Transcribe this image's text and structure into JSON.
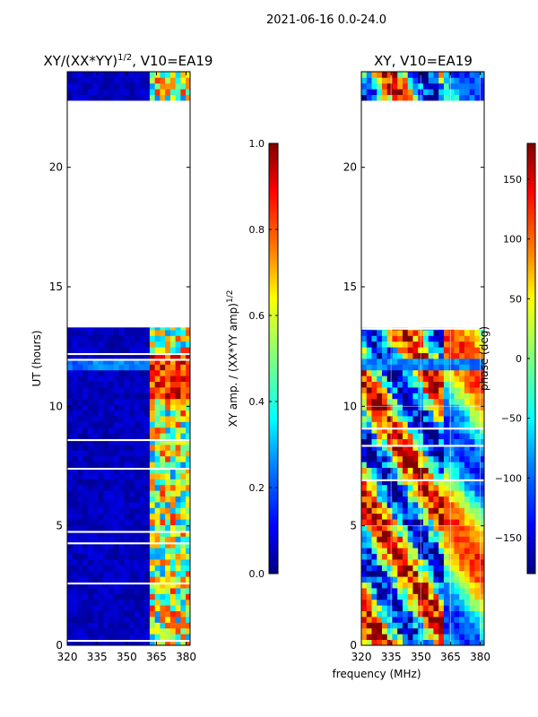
{
  "figure": {
    "suptitle": "2021-06-16 0.0-24.0",
    "shared_xlabel": "frequency (MHz)"
  },
  "colormap": {
    "name": "jet",
    "stops": [
      "#000080",
      "#0000ff",
      "#0080ff",
      "#00ffff",
      "#80ff80",
      "#ffff00",
      "#ff8000",
      "#ff0000",
      "#800000"
    ]
  },
  "chart_data": [
    {
      "type": "heatmap",
      "title": "XY/(XX*YY)^1/2, V10=EA19",
      "title_main": "XY/(XX*YY)",
      "title_sup": "1/2",
      "title_tail": ", V10=EA19",
      "xlabel": "",
      "ylabel": "UT (hours)",
      "xlim": [
        320,
        382
      ],
      "ylim": [
        0,
        24
      ],
      "xticks": [
        320,
        335,
        350,
        365,
        380
      ],
      "xtick_labels": [
        "320",
        "335",
        "350",
        "365",
        "380"
      ],
      "yticks": [
        0,
        5,
        10,
        15,
        20
      ],
      "ytick_labels": [
        "0",
        "5",
        "10",
        "15",
        "20"
      ],
      "data_coverage_ut": [
        [
          0,
          13.3
        ],
        [
          22.8,
          24
        ]
      ],
      "colorbar": {
        "label": "XY amp. / (XX*YY amp)^1/2",
        "label_main": "XY amp. / (XX*YY amp)",
        "label_sup": "1/2",
        "range": [
          0,
          1
        ],
        "ticks": [
          0.0,
          0.2,
          0.4,
          0.6,
          0.8,
          1.0
        ],
        "tick_labels": [
          "0.0",
          "0.2",
          "0.4",
          "0.6",
          "0.8",
          "1.0"
        ]
      }
    },
    {
      "type": "heatmap",
      "title": "XY, V10=EA19",
      "xlabel": "frequency (MHz)",
      "ylabel": "",
      "xlim": [
        320,
        382
      ],
      "ylim": [
        0,
        24
      ],
      "xticks": [
        320,
        335,
        350,
        365,
        380
      ],
      "xtick_labels": [
        "320",
        "335",
        "350",
        "365",
        "380"
      ],
      "yticks": [
        0,
        5,
        10,
        15,
        20
      ],
      "ytick_labels": [
        "0",
        "5",
        "10",
        "15",
        "20"
      ],
      "data_coverage_ut": [
        [
          0,
          13.3
        ],
        [
          22.8,
          24
        ]
      ],
      "colorbar": {
        "label": "phase (deg)",
        "range": [
          -180,
          180
        ],
        "ticks": [
          -150,
          -100,
          -50,
          0,
          50,
          100,
          150
        ],
        "tick_labels": [
          "−150",
          "−100",
          "−50",
          "0",
          "50",
          "100",
          "150"
        ]
      }
    }
  ]
}
